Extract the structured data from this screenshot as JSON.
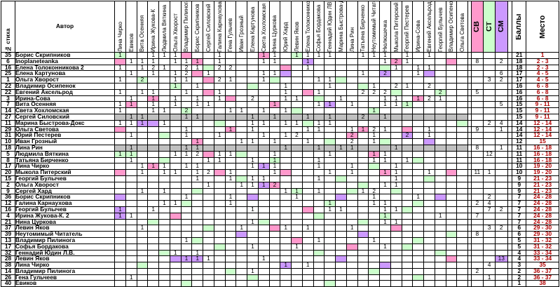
{
  "header": {
    "num_label": "№ стиха",
    "author_label": "Автор",
    "judges": [
      "Лина Чирко",
      "Евиков",
      "Вита Осенняя",
      "Ирина Жукова-К",
      "Людмила Вяткина",
      "Ольга Хворост",
      "Владимир Пилинога",
      "Борис Скрипников",
      "Сергей Силовский",
      "Галина Карнаухова",
      "Гена Гульчев",
      "Иван Грозный",
      "Елена Картунова",
      "Света Хохломская",
      "Нина Цуркова",
      "Юрий Хард",
      "Левин Яков",
      "Елена Толоконникова",
      "Софья Бордакова",
      "Геннадий Юдин ЛВ",
      "Марина Быстрова-Д",
      "Лина Рин",
      "Татьяна Бирченко",
      "Неутомимый Читатель",
      "Нюлюшечка",
      "Мыкола Питерский",
      "Георгий Пестерев",
      "Ирина-Сова",
      "Евгений Аксельрод",
      "Георгий Булычев",
      "Владимир Осипенок",
      "Ольга Светова"
    ],
    "sv": "СВ",
    "st": "СТ",
    "sm": "СМ",
    "score_label": "Баллы",
    "place_label": "Место"
  },
  "rows": [
    {
      "num": "35",
      "name": "Борис Скрипников",
      "score": "21",
      "place": "1"
    },
    {
      "num": "6",
      "name": "Inoplaneteanka",
      "score": "18",
      "place": "2 - 3"
    },
    {
      "num": "16",
      "name": "Елена Толоконникова 2",
      "score": "18",
      "place": "2 - 3"
    },
    {
      "num": "25",
      "name": "Елена Картунова",
      "score": "17",
      "place": "4 - 5"
    },
    {
      "num": "1",
      "name": "Ольга Хворост",
      "score": "17",
      "place": "4 - 5"
    },
    {
      "num": "22",
      "name": "Владимир Осипенок",
      "score": "16",
      "place": "6 - 8"
    },
    {
      "num": "22",
      "name": "Евгений Аксельрод",
      "score": "16",
      "place": "6 - 8"
    },
    {
      "num": "3",
      "name": "Ирина-Сова",
      "score": "16",
      "place": "6 - 8"
    },
    {
      "num": "7",
      "name": "Вита Осенняя",
      "score": "15",
      "place": "9 - 11"
    },
    {
      "num": "14",
      "name": "Света Хохломская",
      "score": "15",
      "place": "9 - 11"
    },
    {
      "num": "27",
      "name": "Сергей Силовский",
      "score": "15",
      "place": "9 - 11"
    },
    {
      "num": "11",
      "name": "Марина Быстрова-Докс",
      "score": "14",
      "place": "12 - 14"
    },
    {
      "num": "29",
      "name": "Ольга Светова",
      "score": "14",
      "place": "12 - 14"
    },
    {
      "num": "31",
      "name": "Юрий Пестерев",
      "score": "14",
      "place": "12 - 14"
    },
    {
      "num": "10",
      "name": "Иван Грозный",
      "score": "12",
      "place": "15"
    },
    {
      "num": "18",
      "name": "Лина Рин",
      "score": "11",
      "place": "16 - 18"
    },
    {
      "num": "5",
      "name": "Людмила Вяткина",
      "score": "11",
      "place": "16 - 18"
    },
    {
      "num": "8",
      "name": "Татьяна Бирченко",
      "score": "11",
      "place": "16 - 18"
    },
    {
      "num": "17",
      "name": "Лина Чирко",
      "score": "10",
      "place": "19 - 20"
    },
    {
      "num": "20",
      "name": "Мыкола Питерский",
      "score": "10",
      "place": "19 - 20"
    },
    {
      "num": "15",
      "name": "Георгий Булычев",
      "score": "9",
      "place": "21 - 23"
    },
    {
      "num": "2",
      "name": "Ольга Хворост",
      "score": "9",
      "place": "21 - 23"
    },
    {
      "num": "9",
      "name": "Сергей Хард",
      "score": "9",
      "place": "21 - 23"
    },
    {
      "num": "36",
      "name": "Борис Скрипников",
      "score": "7",
      "place": "24 - 28"
    },
    {
      "num": "12",
      "name": "Галина Карнаухова",
      "score": "7",
      "place": "24 - 28"
    },
    {
      "num": "16",
      "name": "Георгий Булычев",
      "score": "7",
      "place": "24 - 28"
    },
    {
      "num": "4",
      "name": "Ирина Жукова-К. 2",
      "score": "7",
      "place": "24 - 28"
    },
    {
      "num": "21",
      "name": "Нина Цуркова",
      "score": "7",
      "place": "24 - 28"
    },
    {
      "num": "37",
      "name": "Левин Яков",
      "score": "6",
      "place": "29 - 30"
    },
    {
      "num": "39",
      "name": "Неутомимый Читатель",
      "score": "6",
      "place": "29 - 30"
    },
    {
      "num": "13",
      "name": "Владимир Пилинога",
      "score": "5",
      "place": "31 - 32"
    },
    {
      "num": "17",
      "name": "Софья Бордакова",
      "score": "5",
      "place": "31 - 32"
    },
    {
      "num": "32",
      "name": "Геннадий Юдин Л.В.",
      "score": "4",
      "place": "33 - 34"
    },
    {
      "num": "28",
      "name": "Левин Яков",
      "score": "4",
      "place": "33 - 34"
    },
    {
      "num": "38",
      "name": "Лина Чирко",
      "score": "3",
      "place": "35"
    },
    {
      "num": "14",
      "name": "Владимир Пилинога",
      "score": "2",
      "place": "36 - 37"
    },
    {
      "num": "26",
      "name": "Гена Гульчеев",
      "score": "2",
      "place": "36 - 37"
    },
    {
      "num": "40",
      "name": "Евиков",
      "score": "1",
      "place": "38"
    }
  ],
  "colors": {
    "pink": "#ff99cc",
    "green": "#ccffcc",
    "lilac": "#cc99ff",
    "grey": "#c0c0c0",
    "place_text": "#b00000"
  }
}
